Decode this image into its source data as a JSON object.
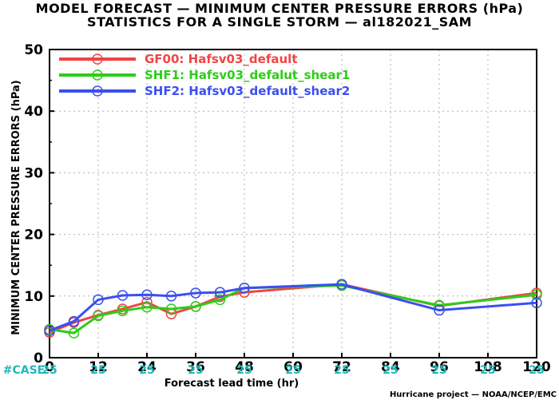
{
  "chart_data": {
    "type": "line",
    "title": "MODEL FORECAST — MINIMUM CENTER PRESSURE ERRORS (hPa)",
    "subtitle": "STATISTICS FOR A SINGLE STORM — al182021_SAM",
    "xlabel": "Forecast lead time (hr)",
    "ylabel": "MINIMUM CENTER PRESSURE ERRORS (hPa)",
    "xlim": [
      0,
      120
    ],
    "ylim": [
      0,
      50
    ],
    "xticks": [
      0,
      12,
      24,
      36,
      48,
      60,
      72,
      84,
      96,
      108,
      120
    ],
    "yticks": [
      0,
      10,
      20,
      30,
      40,
      50
    ],
    "grid": true,
    "legend_position": "top-left",
    "case_label": "#CASE",
    "case_counts": [
      "25",
      "25",
      "25",
      "25",
      "25",
      "25",
      "25",
      "25",
      "25",
      "25",
      "25"
    ],
    "footer": "Hurricane project — NOAA/NCEP/EMC",
    "series": [
      {
        "name": "GF00: Hafsv03_default",
        "color": "#f04545",
        "x": [
          0,
          6,
          12,
          18,
          24,
          30,
          36,
          42,
          48,
          72,
          96,
          120
        ],
        "y": [
          4.1,
          5.7,
          6.9,
          7.9,
          9.0,
          7.1,
          8.3,
          9.9,
          10.6,
          11.9,
          8.4,
          10.5
        ]
      },
      {
        "name": "SHF1: Hafsv03_defalut_shear1",
        "color": "#2ecc1a",
        "x": [
          0,
          6,
          12,
          18,
          24,
          30,
          36,
          42,
          48,
          72,
          96,
          120
        ],
        "y": [
          4.6,
          4.0,
          6.8,
          7.6,
          8.2,
          7.9,
          8.3,
          9.4,
          11.3,
          11.7,
          8.5,
          10.2
        ]
      },
      {
        "name": "SHF2: Hafsv03_default_shear2",
        "color": "#3a4ff0",
        "x": [
          0,
          6,
          12,
          18,
          24,
          30,
          36,
          42,
          48,
          72,
          96,
          120
        ],
        "y": [
          4.4,
          5.9,
          9.4,
          10.1,
          10.2,
          10.0,
          10.5,
          10.6,
          11.3,
          11.9,
          7.7,
          8.9
        ]
      }
    ]
  },
  "colors": {
    "case": "#20b8b8",
    "grid": "#b0b0b0"
  }
}
